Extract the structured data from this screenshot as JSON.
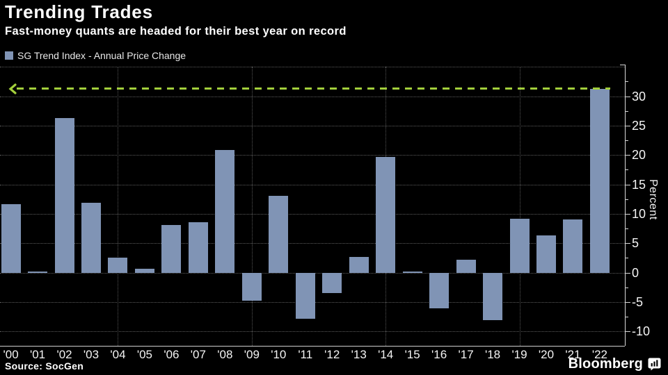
{
  "header": {
    "title": "Trending Trades",
    "subtitle": "Fast-money quants are headed for their best year on record"
  },
  "legend": {
    "label": "SG Trend Index - Annual Price Change",
    "swatch_color": "#8094b5"
  },
  "chart_data": {
    "type": "bar",
    "title": "Trending Trades",
    "categories": [
      "'00",
      "'01",
      "'02",
      "'03",
      "'04",
      "'05",
      "'06",
      "'07",
      "'08",
      "'09",
      "'10",
      "'11",
      "'12",
      "'13",
      "'14",
      "'15",
      "'16",
      "'17",
      "'18",
      "'19",
      "'20",
      "'21",
      "'22"
    ],
    "values": [
      11.7,
      0.2,
      26.3,
      11.9,
      2.6,
      0.7,
      8.1,
      8.6,
      20.9,
      -4.8,
      13.1,
      -7.9,
      -3.5,
      2.7,
      19.7,
      0.1,
      -6.1,
      2.2,
      -8.1,
      9.2,
      6.3,
      9.0,
      31.3
    ],
    "xlabel": "",
    "ylabel": "Percent",
    "ylim": [
      -12.5,
      35
    ],
    "y_ticks": [
      30,
      25,
      20,
      15,
      10,
      5,
      0,
      -5,
      -10
    ],
    "grid_y_values": [
      35,
      30,
      25,
      20,
      15,
      10,
      5,
      0,
      -5,
      -10
    ],
    "grid_x_categories": [
      "'04",
      "'09",
      "'14",
      "'19"
    ],
    "legend_position": "top-left",
    "bar_color": "#8094b5",
    "reference_line": {
      "value": 31.3,
      "style": "dashed",
      "color": "#a3cf3b",
      "arrow": "left"
    }
  },
  "footer": {
    "source": "Source: SocGen",
    "brand": "Bloomberg",
    "brand_icon": "bloomberg-chart-bubble-icon"
  }
}
